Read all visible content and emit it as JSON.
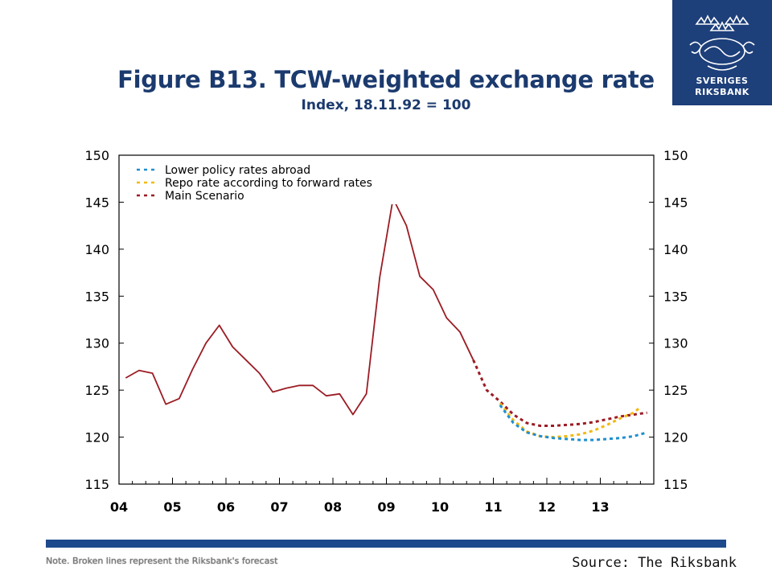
{
  "header": {
    "title": "Figure B13. TCW-weighted exchange rate",
    "subtitle": "Index, 18.11.92 = 100"
  },
  "logo": {
    "line1": "SVERIGES",
    "line2": "RIKSBANK",
    "icon": "crown-lion-emblem-icon"
  },
  "footer": {
    "note": "Note. Broken lines represent the Riksbank's forecast",
    "source": "Source: The Riksbank"
  },
  "colors": {
    "main": "#9b1c24",
    "lower": "#1f8fcf",
    "repo": "#f2b90f",
    "axis": "#000000",
    "brand": "#1d3f7a"
  },
  "chart_data": {
    "type": "line",
    "title": "Figure B13. TCW-weighted exchange rate",
    "subtitle": "Index, 18.11.92 = 100",
    "xlim": [
      2004.0,
      2014.0
    ],
    "ylim": [
      115,
      150
    ],
    "yticks": [
      115,
      120,
      125,
      130,
      135,
      140,
      145,
      150
    ],
    "xtick_labels": [
      "04",
      "05",
      "06",
      "07",
      "08",
      "09",
      "10",
      "11",
      "12",
      "13"
    ],
    "legend": [
      {
        "name": "Lower policy rates abroad",
        "color": "#1f8fcf"
      },
      {
        "name": "Repo rate according to forward rates",
        "color": "#f2b90f"
      },
      {
        "name": "Main Scenario",
        "color": "#9b1c24"
      }
    ],
    "legend_placement": "top-left",
    "grid": false,
    "series": [
      {
        "name": "Main Scenario",
        "style": "solid",
        "color": "#9b1c24",
        "x": [
          2004.125,
          2004.375,
          2004.625,
          2004.875,
          2005.125,
          2005.375,
          2005.625,
          2005.875,
          2006.125,
          2006.375,
          2006.625,
          2006.875,
          2007.125,
          2007.375,
          2007.625,
          2007.875,
          2008.125,
          2008.375,
          2008.625,
          2008.875,
          2009.125,
          2009.375,
          2009.625,
          2009.875,
          2010.125,
          2010.375,
          2010.625
        ],
        "y": [
          126.3,
          127.1,
          126.8,
          123.5,
          124.1,
          127.2,
          130.0,
          131.9,
          129.6,
          128.2,
          126.8,
          124.8,
          125.2,
          125.5,
          125.5,
          124.4,
          124.6,
          122.4,
          124.6,
          137.0,
          145.4,
          142.5,
          137.1,
          135.7,
          132.7,
          131.2,
          128.2
        ]
      },
      {
        "name": "Main Scenario",
        "style": "dashed",
        "color": "#9b1c24",
        "x": [
          2010.625,
          2010.875,
          2011.125,
          2011.375,
          2011.625,
          2011.875,
          2012.125,
          2012.375,
          2012.625,
          2012.875,
          2013.125,
          2013.375,
          2013.625,
          2013.875
        ],
        "y": [
          128.2,
          125.0,
          123.8,
          122.4,
          121.5,
          121.2,
          121.2,
          121.3,
          121.4,
          121.6,
          121.9,
          122.2,
          122.4,
          122.6
        ]
      },
      {
        "name": "Repo rate according to forward rates",
        "style": "dashed",
        "color": "#f2b90f",
        "x": [
          2011.125,
          2011.375,
          2011.625,
          2011.875,
          2012.125,
          2012.375,
          2012.625,
          2012.875,
          2013.125,
          2013.375,
          2013.625,
          2013.75
        ],
        "y": [
          123.6,
          121.8,
          120.6,
          120.1,
          120.0,
          120.1,
          120.3,
          120.7,
          121.3,
          122.0,
          122.6,
          123.2
        ]
      },
      {
        "name": "Lower policy rates abroad",
        "style": "dashed",
        "color": "#1f8fcf",
        "x": [
          2011.125,
          2011.375,
          2011.625,
          2011.875,
          2012.125,
          2012.375,
          2012.625,
          2012.875,
          2013.125,
          2013.375,
          2013.625,
          2013.875
        ],
        "y": [
          123.4,
          121.5,
          120.5,
          120.1,
          119.9,
          119.8,
          119.7,
          119.7,
          119.8,
          119.9,
          120.1,
          120.5
        ]
      }
    ]
  }
}
